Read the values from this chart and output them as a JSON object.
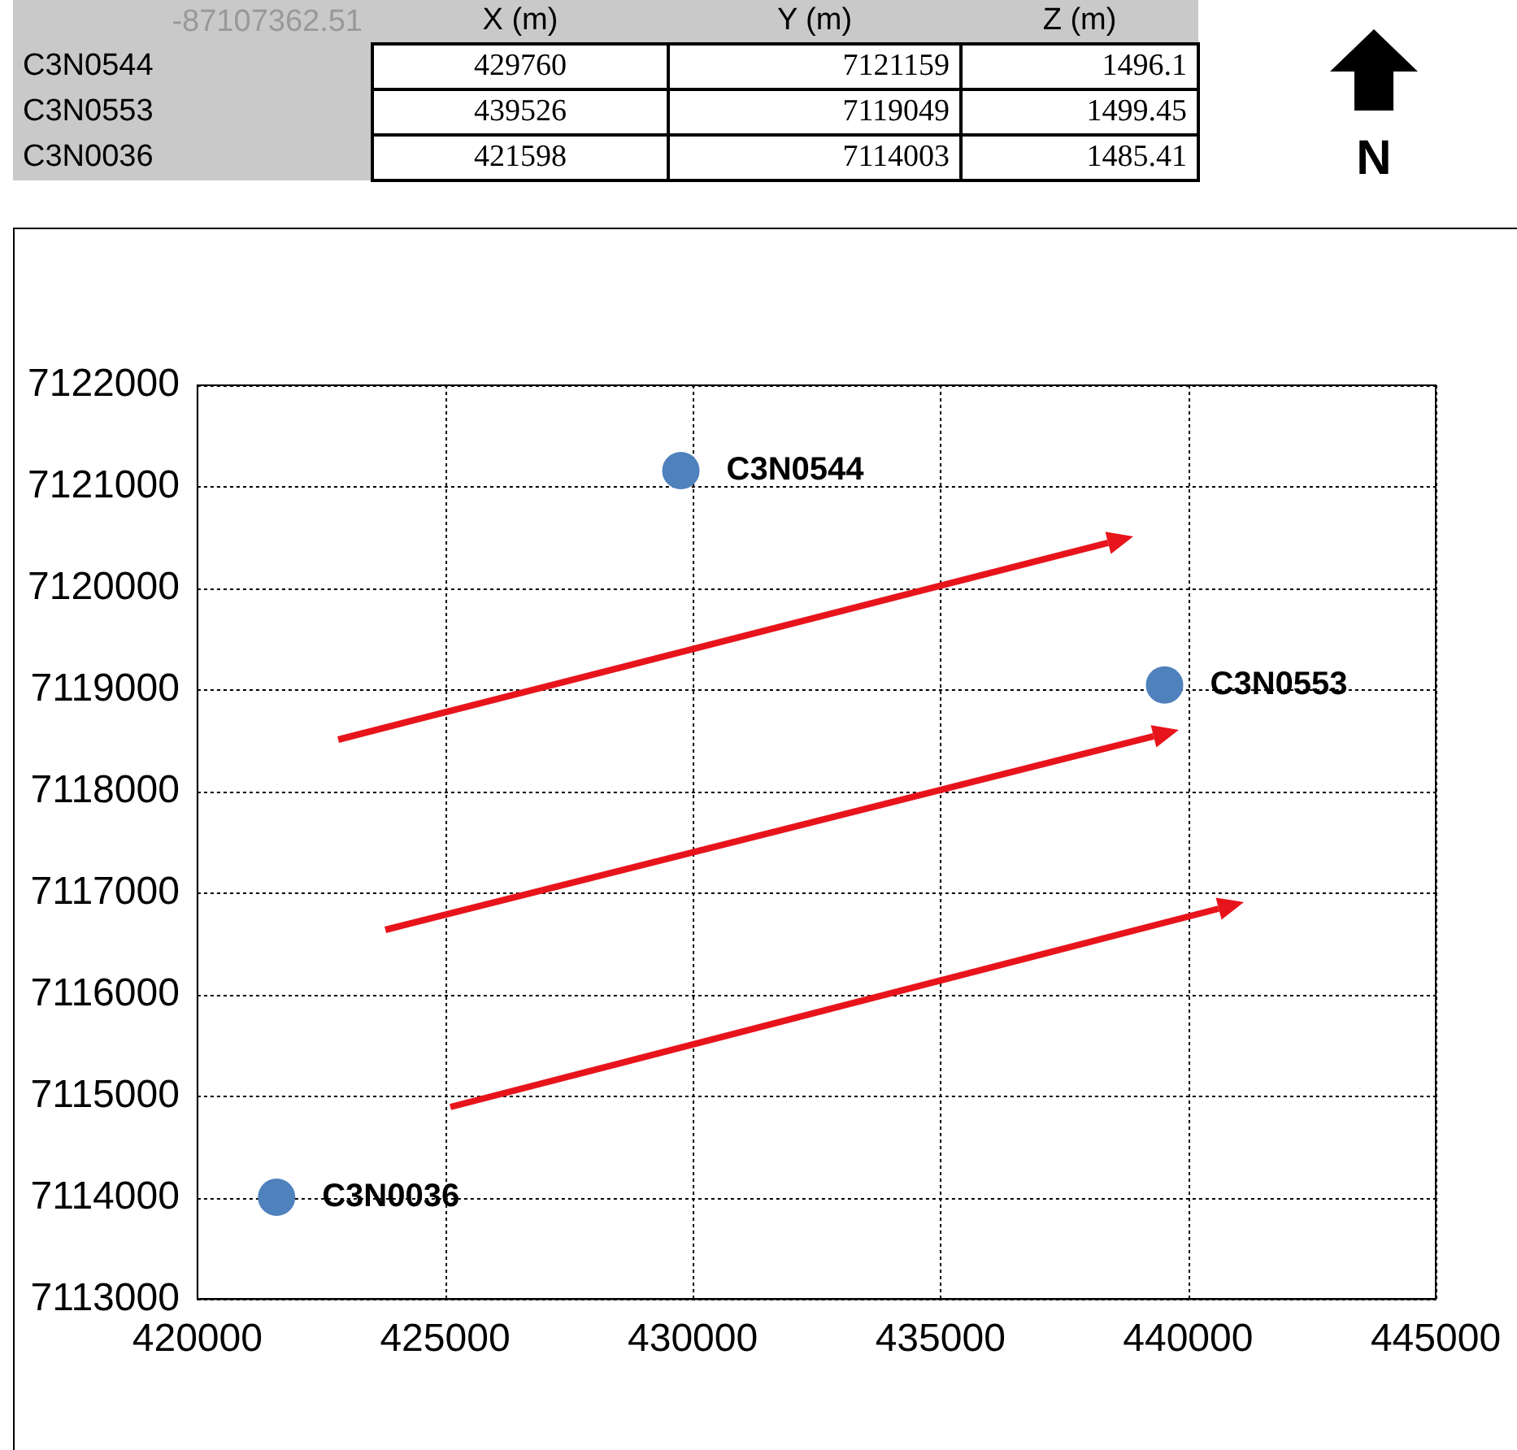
{
  "chart_data": {
    "type": "scatter",
    "x": [
      429760,
      439526,
      421598
    ],
    "series": [
      {
        "color": "#4f81bd",
        "values": [
          7121159,
          7119049,
          7114003
        ]
      }
    ],
    "xlim": [
      420000,
      445000
    ],
    "xticks": [
      420000,
      425000,
      430000,
      435000,
      440000,
      445000
    ],
    "ylim": [
      7113000,
      7122000
    ],
    "yticks": [
      7113000,
      7114000,
      7115000,
      7116000,
      7117000,
      7118000,
      7119000,
      7120000,
      7121000,
      7122000
    ],
    "grid": true,
    "legend": false,
    "marker": "circle",
    "annotations": [
      {
        "text": "C3N0544",
        "x": 429760,
        "y": 7121159
      },
      {
        "text": "C3N0553",
        "x": 439526,
        "y": 7119049
      },
      {
        "text": "C3N0036",
        "x": 421598,
        "y": 7114003
      },
      "-87107362.51",
      "X (m)",
      "Y (m)",
      "Z (m)",
      "429760",
      "7121159",
      "1496.1",
      "439526",
      "7119049",
      "1499.45",
      "421598",
      "7114003",
      "1485.41",
      "N"
    ]
  }
}
